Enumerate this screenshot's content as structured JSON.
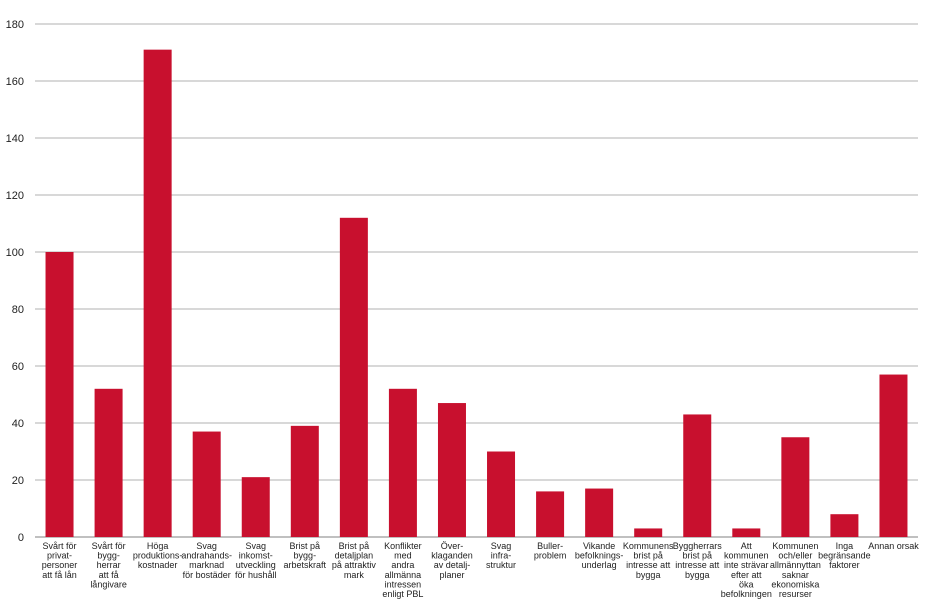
{
  "chart_data": {
    "type": "bar",
    "categories": [
      [
        "Svårt för",
        "privat-",
        "personer",
        "att få lån"
      ],
      [
        "Svårt för",
        "bygg-",
        "herrar",
        "att få",
        "långivare"
      ],
      [
        "Höga",
        "produktions-",
        "kostnader"
      ],
      [
        "Svag",
        "andrahands-",
        "marknad",
        "för bostäder"
      ],
      [
        "Svag",
        "inkomst-",
        "utveckling",
        "för hushåll"
      ],
      [
        "Brist på",
        "bygg-",
        "arbetskraft"
      ],
      [
        "Brist på",
        "detaljplan",
        "på attraktiv",
        "mark"
      ],
      [
        "Konflikter",
        "med",
        "andra",
        "allmänna",
        "intressen",
        "enligt PBL"
      ],
      [
        "Över-",
        "klaganden",
        "av detalj-",
        "planer"
      ],
      [
        "Svag",
        "infra-",
        "struktur"
      ],
      [
        "Buller-",
        "problem"
      ],
      [
        "Vikande",
        "befolknings-",
        "underlag"
      ],
      [
        "Kommunens",
        "brist på",
        "intresse att",
        "bygga"
      ],
      [
        "Byggherrars",
        "brist på",
        "intresse att",
        "bygga"
      ],
      [
        "Att",
        "kommunen",
        "inte strävar",
        "efter att",
        "öka",
        "befolkningen"
      ],
      [
        "Kommunen",
        "och/eller",
        "allmännyttan",
        "saknar",
        "ekonomiska",
        "resurser"
      ],
      [
        "Inga",
        "begränsande",
        "faktorer"
      ],
      [
        "Annan orsak"
      ]
    ],
    "values": [
      100,
      52,
      171,
      37,
      21,
      39,
      112,
      52,
      47,
      30,
      16,
      17,
      3,
      43,
      3,
      35,
      8,
      57
    ],
    "ylim": [
      0,
      180
    ],
    "yticks": [
      0,
      20,
      40,
      60,
      80,
      100,
      120,
      140,
      160,
      180
    ],
    "grid": true,
    "legend": "none",
    "bar_color": "#c8102e"
  }
}
